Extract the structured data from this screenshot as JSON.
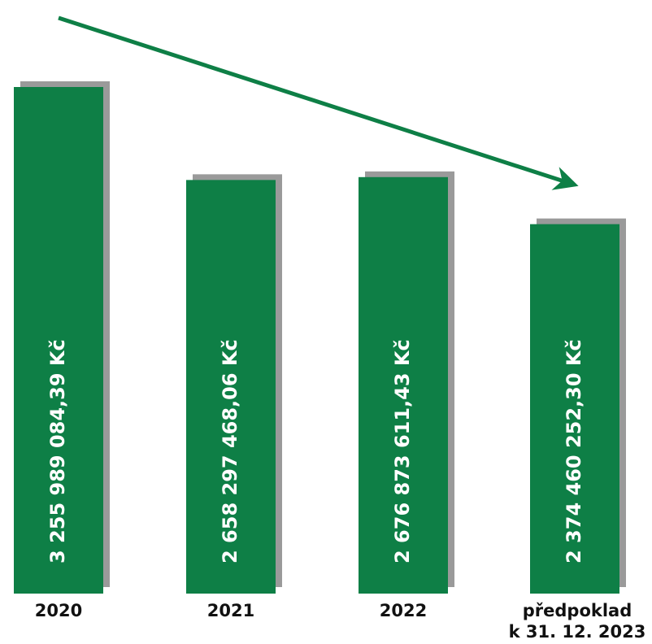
{
  "chart_data": {
    "type": "bar",
    "categories": [
      [
        "2020"
      ],
      [
        "2021"
      ],
      [
        "2022"
      ],
      [
        "předpoklad",
        "k 31. 12. 2023"
      ]
    ],
    "values": [
      3255989084.39,
      2658297468.06,
      2676873611.43,
      2374460252.3
    ],
    "value_labels": [
      "3 255 989 084,39 Kč",
      "2 658 297 468,06 Kč",
      "2 676 873 611,43 Kč",
      "2 374 460 252,30 Kč"
    ],
    "trend_arrow": true,
    "colors": {
      "bar": "#0e7f46",
      "shadow": "#9a9a9a",
      "arrow": "#0e7f46",
      "value_text": "#ffffff",
      "category_text": "#111111"
    },
    "ylim": [
      0,
      3255989084.39
    ],
    "grid": false,
    "legend": "none"
  }
}
